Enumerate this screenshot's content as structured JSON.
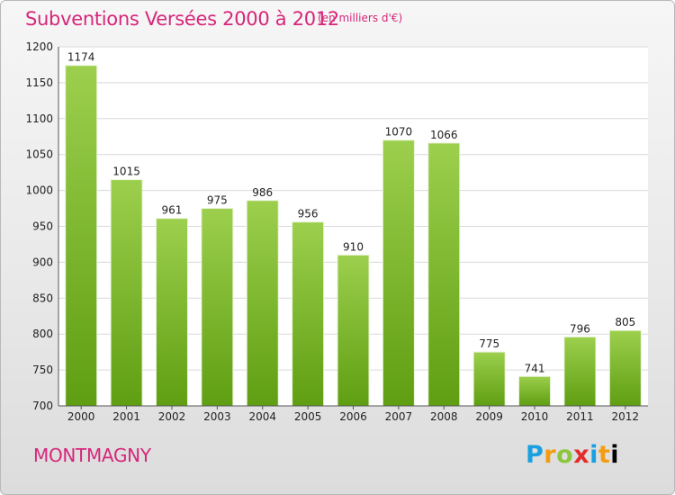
{
  "header": {
    "title": "Subventions Versées 2000 à 2012",
    "unit_note": "(en milliers d'€)"
  },
  "footer": {
    "commune": "MONTMAGNY",
    "logo_text": "Proxiti"
  },
  "colors": {
    "title": "#d6267a",
    "bar_light": "#9ccf4d",
    "bar_dark": "#5f9e12",
    "plot_background": "#ffffff",
    "grid": "#d9d9d9"
  },
  "chart_data": {
    "type": "bar",
    "title": "Subventions Versées 2000 à 2012",
    "subtitle": "(en milliers d'€)",
    "xlabel": "",
    "ylabel": "",
    "categories": [
      "2000",
      "2001",
      "2002",
      "2003",
      "2004",
      "2005",
      "2006",
      "2007",
      "2008",
      "2009",
      "2010",
      "2011",
      "2012"
    ],
    "values": [
      1174,
      1015,
      961,
      975,
      986,
      956,
      910,
      1070,
      1066,
      775,
      741,
      796,
      805
    ],
    "ylim": [
      700,
      1200
    ],
    "yticks": [
      700,
      750,
      800,
      850,
      900,
      950,
      1000,
      1050,
      1100,
      1150,
      1200
    ],
    "grid": true,
    "data_labels": true,
    "legend": "none"
  }
}
